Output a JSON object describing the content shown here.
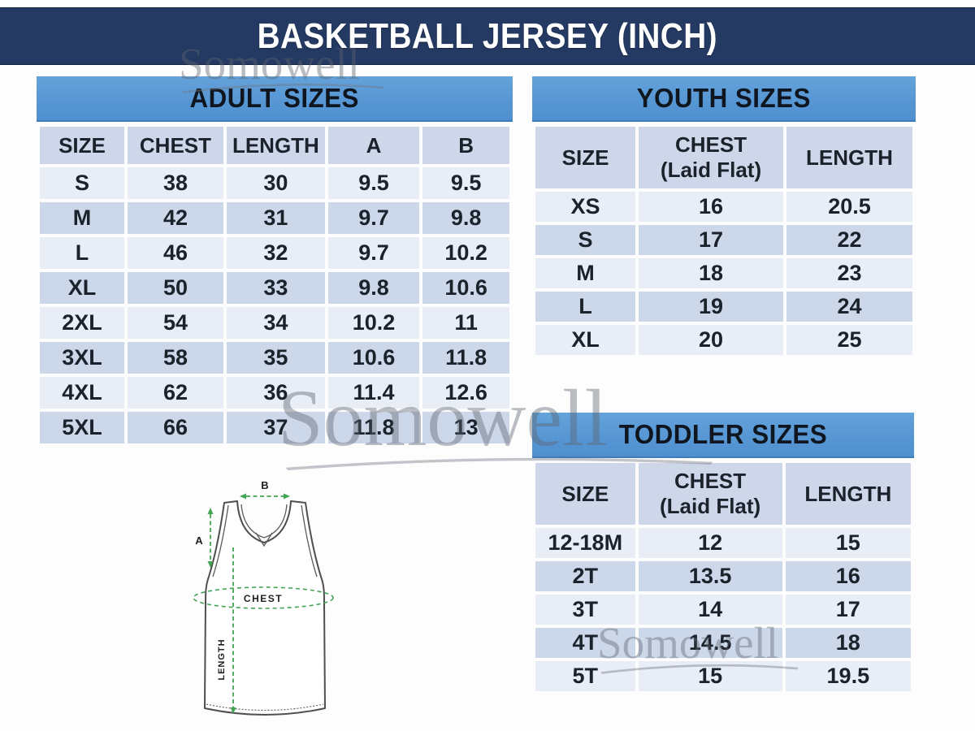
{
  "banner": {
    "title": "BASKETBALL JERSEY (INCH)"
  },
  "watermark": {
    "text": "Somowell"
  },
  "chart_data": [
    {
      "type": "table",
      "title": "ADULT SIZES",
      "columns": [
        "SIZE",
        "CHEST",
        "LENGTH",
        "A",
        "B"
      ],
      "rows": [
        [
          "S",
          "38",
          "30",
          "9.5",
          "9.5"
        ],
        [
          "M",
          "42",
          "31",
          "9.7",
          "9.8"
        ],
        [
          "L",
          "46",
          "32",
          "9.7",
          "10.2"
        ],
        [
          "XL",
          "50",
          "33",
          "9.8",
          "10.6"
        ],
        [
          "2XL",
          "54",
          "34",
          "10.2",
          "11"
        ],
        [
          "3XL",
          "58",
          "35",
          "10.6",
          "11.8"
        ],
        [
          "4XL",
          "62",
          "36",
          "11.4",
          "12.6"
        ],
        [
          "5XL",
          "66",
          "37",
          "11.8",
          "13"
        ]
      ]
    },
    {
      "type": "table",
      "title": "YOUTH SIZES",
      "columns": [
        {
          "label": "SIZE"
        },
        {
          "label": "CHEST",
          "note": "(Laid Flat)"
        },
        {
          "label": "LENGTH"
        }
      ],
      "rows": [
        [
          "XS",
          "16",
          "20.5"
        ],
        [
          "S",
          "17",
          "22"
        ],
        [
          "M",
          "18",
          "23"
        ],
        [
          "L",
          "19",
          "24"
        ],
        [
          "XL",
          "20",
          "25"
        ]
      ]
    },
    {
      "type": "table",
      "title": "TODDLER SIZES",
      "columns": [
        {
          "label": "SIZE"
        },
        {
          "label": "CHEST",
          "note": "(Laid Flat)"
        },
        {
          "label": "LENGTH"
        }
      ],
      "rows": [
        [
          "12-18M",
          "12",
          "15"
        ],
        [
          "2T",
          "13.5",
          "16"
        ],
        [
          "3T",
          "14",
          "17"
        ],
        [
          "4T",
          "14.5",
          "18"
        ],
        [
          "5T",
          "15",
          "19.5"
        ]
      ]
    }
  ],
  "diagram": {
    "label_a": "A",
    "label_b": "B",
    "label_chest": "CHEST",
    "label_length": "LENGTH"
  },
  "colors": {
    "banner_navy": "#253a63",
    "section_header_blue": "#5696d3",
    "column_header_bg": "#cdd7e9",
    "row_light": "#e9edf5",
    "row_dark": "#ccd8ea",
    "measure_green": "#43a454",
    "watermark_gray": "#6d7380"
  }
}
